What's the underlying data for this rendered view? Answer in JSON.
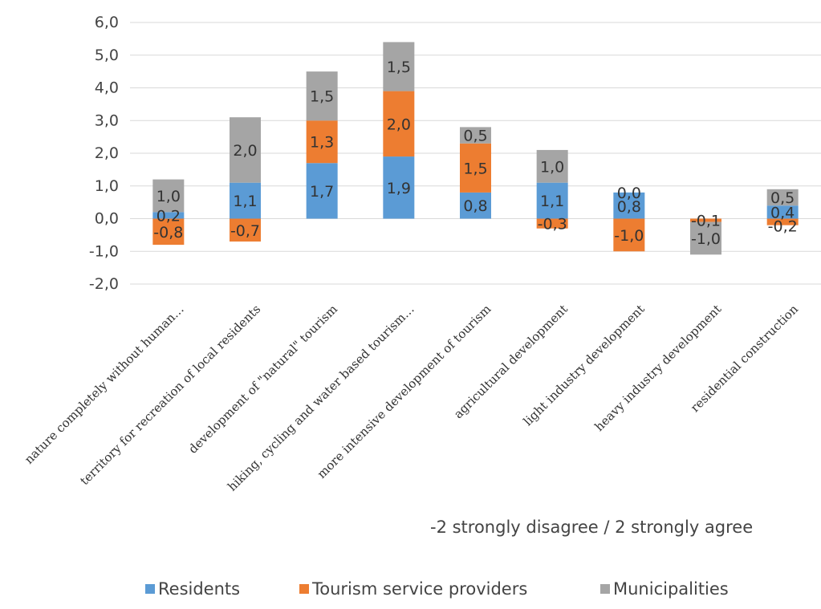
{
  "chart_data": {
    "type": "bar",
    "stacked": true,
    "categories": [
      "nature completely without human…",
      "territory for recreation of local residents",
      "development of \"natural\" tourism",
      "hiking, cycling and water based tourism…",
      "more intensive development of tourism",
      "agricultural development",
      "light industry development",
      "heavy industry development",
      "residential construction"
    ],
    "series": [
      {
        "name": "Residents",
        "color": "#5b9bd5",
        "values": [
          0.2,
          1.1,
          1.7,
          1.9,
          0.8,
          1.1,
          0.8,
          0.0,
          0.4
        ],
        "labels": [
          "0,2",
          "1,1",
          "1,7",
          "1,9",
          "0,8",
          "1,1",
          "0,8",
          "",
          "0,4"
        ]
      },
      {
        "name": "Tourism service providers",
        "color": "#ed7d31",
        "values": [
          -0.8,
          -0.7,
          1.3,
          2.0,
          1.5,
          -0.3,
          -1.0,
          -0.1,
          -0.2
        ],
        "labels": [
          "-0,8",
          "-0,7",
          "1,3",
          "2,0",
          "1,5",
          "-0,3",
          "-1,0",
          "-0,1",
          "-0,2"
        ]
      },
      {
        "name": "Municipalities",
        "color": "#a5a5a5",
        "values": [
          1.0,
          2.0,
          1.5,
          1.5,
          0.5,
          1.0,
          0.0,
          -1.0,
          0.5
        ],
        "labels": [
          "1,0",
          "2,0",
          "1,5",
          "1,5",
          "0,5",
          "1,0",
          "0,0",
          "-1,0",
          "0,5"
        ]
      }
    ],
    "ylim": [
      -2.0,
      6.0
    ],
    "yticks": [
      -2.0,
      -1.0,
      0.0,
      1.0,
      2.0,
      3.0,
      4.0,
      5.0,
      6.0
    ],
    "ytick_labels": [
      "-2,0",
      "-1,0",
      "0,0",
      "1,0",
      "2,0",
      "3,0",
      "4,0",
      "5,0",
      "6,0"
    ],
    "grid": true,
    "legend_position": "bottom",
    "annotation": "-2 strongly disagree / 2 strongly agree"
  }
}
